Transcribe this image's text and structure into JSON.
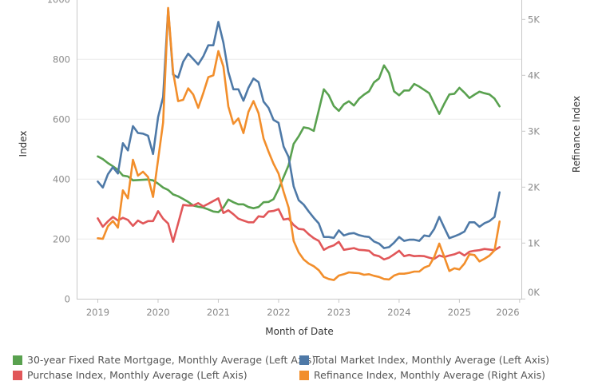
{
  "chart_data": {
    "type": "line",
    "xlabel": "Month of Date",
    "ylabel": "Index",
    "y2label": "Refinance Index",
    "x_ticks": [
      "2019",
      "2020",
      "2021",
      "2022",
      "2023",
      "2024",
      "2025",
      "2026"
    ],
    "y_ticks": [
      "0",
      "200",
      "400",
      "600",
      "800",
      "1000"
    ],
    "y2_ticks": [
      "0K",
      "1K",
      "2K",
      "3K",
      "4K",
      "5K"
    ],
    "ylim": [
      0,
      1000
    ],
    "y2lim": [
      0,
      5340
    ],
    "grid": true,
    "legend_position": "bottom",
    "x_start": "2019-01",
    "x_end": "2025-09",
    "x_frequency": "monthly",
    "series": [
      {
        "name": "30-year Fixed Rate Mortgage, Monthly Average (Left Axis)",
        "axis": "left",
        "color": "#59a14f",
        "values": [
          476,
          467,
          454,
          443,
          431,
          412,
          409,
          396,
          397,
          398,
          399,
          396,
          385,
          372,
          364,
          349,
          343,
          334,
          324,
          312,
          308,
          305,
          299,
          292,
          290,
          305,
          332,
          323,
          316,
          316,
          307,
          303,
          307,
          323,
          324,
          333,
          367,
          407,
          447,
          518,
          543,
          573,
          570,
          561,
          630,
          700,
          680,
          644,
          628,
          650,
          660,
          646,
          668,
          682,
          693,
          723,
          736,
          780,
          754,
          693,
          680,
          696,
          696,
          718,
          709,
          698,
          687,
          652,
          618,
          652,
          683,
          685,
          705,
          689,
          671,
          682,
          692,
          687,
          683,
          669,
          643
        ]
      },
      {
        "name": "Total Market Index, Monthly Average (Left Axis)",
        "axis": "left",
        "color": "#4e79a7",
        "values": [
          392,
          372,
          416,
          440,
          419,
          520,
          496,
          577,
          554,
          552,
          545,
          484,
          607,
          674,
          967,
          749,
          739,
          792,
          819,
          801,
          783,
          810,
          847,
          847,
          925,
          856,
          758,
          700,
          700,
          662,
          705,
          736,
          724,
          659,
          638,
          598,
          588,
          509,
          474,
          376,
          330,
          315,
          292,
          271,
          252,
          207,
          207,
          204,
          229,
          212,
          218,
          220,
          213,
          209,
          207,
          192,
          185,
          170,
          173,
          188,
          207,
          194,
          198,
          198,
          194,
          212,
          209,
          234,
          274,
          238,
          203,
          209,
          216,
          225,
          256,
          256,
          241,
          253,
          260,
          274,
          356
        ]
      },
      {
        "name": "Purchase Index, Monthly Average (Left Axis)",
        "axis": "left",
        "color": "#e15759",
        "values": [
          269,
          241,
          259,
          274,
          262,
          271,
          264,
          244,
          262,
          252,
          260,
          260,
          293,
          268,
          252,
          191,
          252,
          314,
          312,
          312,
          320,
          309,
          318,
          327,
          336,
          287,
          296,
          283,
          268,
          262,
          256,
          256,
          276,
          274,
          292,
          294,
          300,
          265,
          268,
          247,
          234,
          232,
          216,
          203,
          194,
          164,
          173,
          179,
          191,
          164,
          167,
          170,
          164,
          163,
          161,
          147,
          143,
          132,
          138,
          149,
          161,
          143,
          147,
          143,
          144,
          143,
          138,
          134,
          145,
          140,
          145,
          149,
          156,
          145,
          158,
          161,
          163,
          167,
          165,
          163,
          173
        ]
      },
      {
        "name": "Refinance Index, Monthly Average (Right Axis)",
        "axis": "right",
        "color": "#f28e2b",
        "values": [
          1086,
          1076,
          1300,
          1395,
          1276,
          1943,
          1800,
          2490,
          2205,
          2276,
          2181,
          1824,
          2490,
          3157,
          5205,
          4062,
          3538,
          3562,
          3767,
          3657,
          3419,
          3681,
          3967,
          4000,
          4433,
          4157,
          3443,
          3133,
          3229,
          2967,
          3348,
          3538,
          3324,
          2871,
          2633,
          2419,
          2243,
          1919,
          1633,
          1038,
          833,
          705,
          633,
          586,
          514,
          395,
          357,
          338,
          419,
          443,
          476,
          467,
          462,
          433,
          443,
          414,
          395,
          357,
          348,
          419,
          452,
          452,
          467,
          490,
          490,
          562,
          595,
          752,
          990,
          752,
          500,
          548,
          529,
          633,
          800,
          786,
          671,
          719,
          776,
          871,
          1386
        ]
      }
    ]
  },
  "legend": {
    "items": [
      {
        "label": "30-year Fixed Rate Mortgage, Monthly Average (Left Axis)",
        "color": "#59a14f"
      },
      {
        "label": "Total Market Index, Monthly Average (Left Axis)",
        "color": "#4e79a7"
      },
      {
        "label": "Purchase Index, Monthly Average (Left Axis)",
        "color": "#e15759"
      },
      {
        "label": "Refinance Index, Monthly Average (Right Axis)",
        "color": "#f28e2b"
      }
    ]
  }
}
